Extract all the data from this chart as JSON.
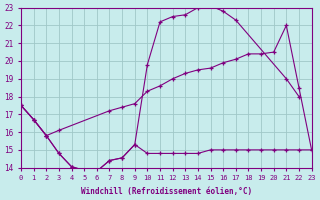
{
  "xlabel": "Windchill (Refroidissement éolien,°C)",
  "bg_color": "#c8ecec",
  "grid_color": "#a0c8c8",
  "line_color": "#800080",
  "xlim": [
    0,
    23
  ],
  "ylim": [
    14,
    23
  ],
  "xticks": [
    0,
    1,
    2,
    3,
    4,
    5,
    6,
    7,
    8,
    9,
    10,
    11,
    12,
    13,
    14,
    15,
    16,
    17,
    18,
    19,
    20,
    21,
    22,
    23
  ],
  "yticks": [
    14,
    15,
    16,
    17,
    18,
    19,
    20,
    21,
    22,
    23
  ],
  "series1_x": [
    0,
    1,
    2,
    3,
    4,
    5,
    6,
    7,
    8,
    9,
    10,
    11,
    12,
    13,
    14,
    15,
    16,
    17,
    21,
    22
  ],
  "series1_y": [
    17.5,
    16.7,
    15.8,
    14.8,
    14.05,
    13.85,
    13.8,
    14.4,
    14.55,
    15.3,
    19.8,
    22.2,
    22.5,
    22.6,
    23.0,
    23.1,
    22.8,
    22.3,
    19.0,
    18.0
  ],
  "series2_x": [
    0,
    1,
    2,
    3,
    4,
    5,
    6,
    7,
    8,
    9,
    10,
    11,
    12,
    13,
    14,
    15,
    16,
    17,
    18,
    19,
    20,
    21,
    22,
    23
  ],
  "series2_y": [
    17.5,
    16.7,
    15.8,
    14.8,
    14.05,
    13.85,
    13.8,
    14.4,
    14.55,
    15.3,
    14.8,
    14.8,
    14.8,
    14.8,
    14.8,
    15.0,
    15.0,
    15.0,
    15.0,
    15.0,
    15.0,
    15.0,
    15.0,
    15.0
  ],
  "series3_x": [
    0,
    1,
    2,
    3,
    7,
    8,
    9,
    10,
    11,
    12,
    13,
    14,
    15,
    16,
    17,
    18,
    19,
    20,
    21,
    22,
    23
  ],
  "series3_y": [
    17.5,
    16.7,
    15.8,
    16.1,
    17.2,
    17.4,
    17.6,
    18.3,
    18.6,
    19.0,
    19.3,
    19.5,
    19.6,
    19.9,
    20.1,
    20.4,
    20.4,
    20.5,
    22.0,
    18.5,
    15.0
  ]
}
